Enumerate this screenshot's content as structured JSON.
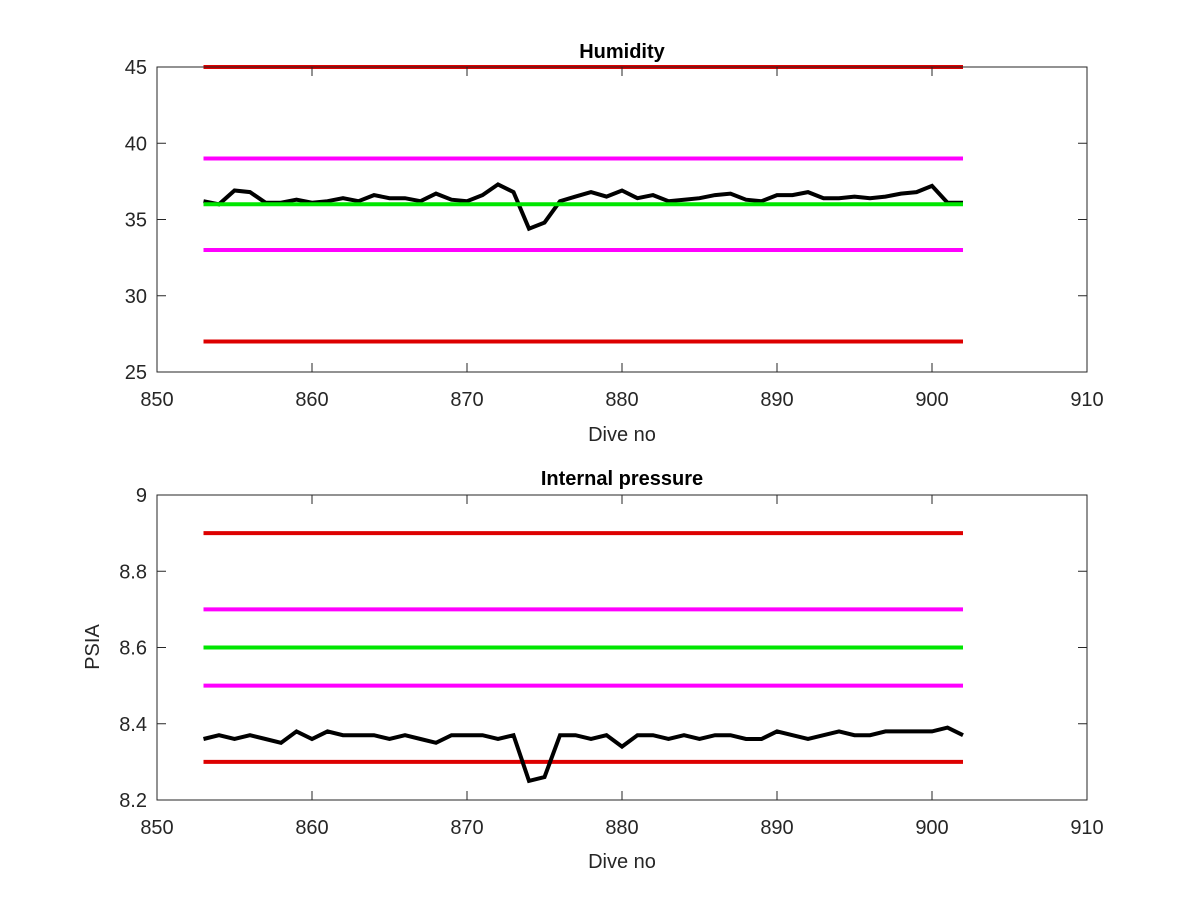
{
  "chart_data": [
    {
      "type": "line",
      "title": "Humidity",
      "xlabel": "Dive no",
      "ylabel": "",
      "xlim": [
        850,
        910
      ],
      "ylim": [
        25,
        45
      ],
      "xticks": [
        850,
        860,
        870,
        880,
        890,
        900,
        910
      ],
      "yticks": [
        25,
        30,
        35,
        40,
        45
      ],
      "grid": false,
      "series": [
        {
          "color": "#000000",
          "x": [
            853,
            854,
            855,
            856,
            857,
            858,
            859,
            860,
            861,
            862,
            863,
            864,
            865,
            866,
            867,
            868,
            869,
            870,
            871,
            872,
            873,
            874,
            875,
            876,
            877,
            878,
            879,
            880,
            881,
            882,
            883,
            884,
            885,
            886,
            887,
            888,
            889,
            890,
            891,
            892,
            893,
            894,
            895,
            896,
            897,
            898,
            899,
            900,
            901,
            902
          ],
          "y": [
            36.2,
            36.0,
            36.9,
            36.8,
            36.1,
            36.1,
            36.3,
            36.1,
            36.2,
            36.4,
            36.2,
            36.6,
            36.4,
            36.4,
            36.2,
            36.7,
            36.3,
            36.2,
            36.6,
            37.3,
            36.8,
            34.4,
            34.8,
            36.2,
            36.5,
            36.8,
            36.5,
            36.9,
            36.4,
            36.6,
            36.2,
            36.3,
            36.4,
            36.6,
            36.7,
            36.3,
            36.2,
            36.6,
            36.6,
            36.8,
            36.4,
            36.4,
            36.5,
            36.4,
            36.5,
            36.7,
            36.8,
            37.2,
            36.1,
            36.1
          ]
        },
        {
          "color": "#dd0000",
          "x": [
            853,
            902
          ],
          "y": [
            45,
            45
          ]
        },
        {
          "color": "#ff00ff",
          "x": [
            853,
            902
          ],
          "y": [
            39,
            39
          ]
        },
        {
          "color": "#00e600",
          "x": [
            853,
            902
          ],
          "y": [
            36,
            36
          ]
        },
        {
          "color": "#ff00ff",
          "x": [
            853,
            902
          ],
          "y": [
            33,
            33
          ]
        },
        {
          "color": "#dd0000",
          "x": [
            853,
            902
          ],
          "y": [
            27,
            27
          ]
        }
      ]
    },
    {
      "type": "line",
      "title": "Internal pressure",
      "xlabel": "Dive no",
      "ylabel": "PSIA",
      "xlim": [
        850,
        910
      ],
      "ylim": [
        8.2,
        9
      ],
      "xticks": [
        850,
        860,
        870,
        880,
        890,
        900,
        910
      ],
      "yticks": [
        8.2,
        8.4,
        8.6,
        8.8,
        9
      ],
      "grid": false,
      "series": [
        {
          "color": "#dd0000",
          "x": [
            853,
            902
          ],
          "y": [
            8.9,
            8.9
          ]
        },
        {
          "color": "#ff00ff",
          "x": [
            853,
            902
          ],
          "y": [
            8.7,
            8.7
          ]
        },
        {
          "color": "#00e600",
          "x": [
            853,
            902
          ],
          "y": [
            8.6,
            8.6
          ]
        },
        {
          "color": "#ff00ff",
          "x": [
            853,
            902
          ],
          "y": [
            8.5,
            8.5
          ]
        },
        {
          "color": "#dd0000",
          "x": [
            853,
            902
          ],
          "y": [
            8.3,
            8.3
          ]
        },
        {
          "color": "#000000",
          "x": [
            853,
            854,
            855,
            856,
            857,
            858,
            859,
            860,
            861,
            862,
            863,
            864,
            865,
            866,
            867,
            868,
            869,
            870,
            871,
            872,
            873,
            874,
            875,
            876,
            877,
            878,
            879,
            880,
            881,
            882,
            883,
            884,
            885,
            886,
            887,
            888,
            889,
            890,
            891,
            892,
            893,
            894,
            895,
            896,
            897,
            898,
            899,
            900,
            901,
            902
          ],
          "y": [
            8.36,
            8.37,
            8.36,
            8.37,
            8.36,
            8.35,
            8.38,
            8.36,
            8.38,
            8.37,
            8.37,
            8.37,
            8.36,
            8.37,
            8.36,
            8.35,
            8.37,
            8.37,
            8.37,
            8.36,
            8.37,
            8.25,
            8.26,
            8.37,
            8.37,
            8.36,
            8.37,
            8.34,
            8.37,
            8.37,
            8.36,
            8.37,
            8.36,
            8.37,
            8.37,
            8.36,
            8.36,
            8.38,
            8.37,
            8.36,
            8.37,
            8.38,
            8.37,
            8.37,
            8.38,
            8.38,
            8.38,
            8.38,
            8.39,
            8.37
          ]
        }
      ]
    }
  ]
}
